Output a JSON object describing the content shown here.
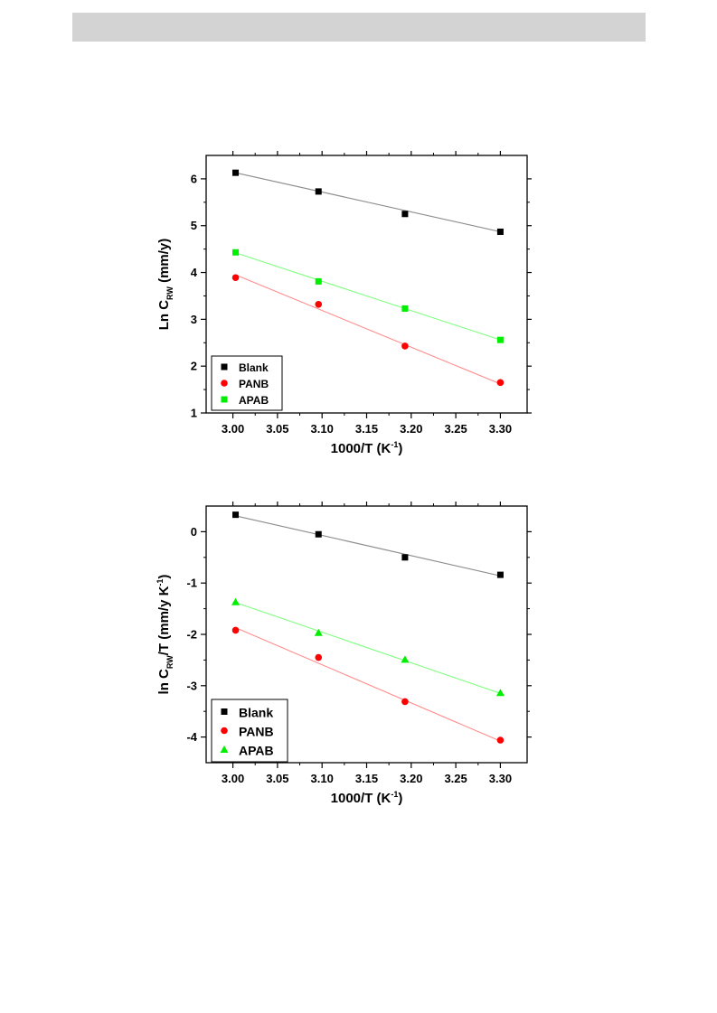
{
  "chart_data": [
    {
      "type": "scatter",
      "xlabel": {
        "main": "1000/T (K",
        "sup": "-1",
        "end": ")"
      },
      "ylabel": {
        "main": "Ln C",
        "sub": "RW",
        "end": " (mm/y)"
      },
      "xlim": [
        2.97,
        3.33
      ],
      "ylim": [
        1,
        6.5
      ],
      "xticks": [
        "3.00",
        "3.05",
        "3.10",
        "3.15",
        "3.20",
        "3.25",
        "3.30"
      ],
      "yticks": [
        "1",
        "2",
        "3",
        "4",
        "5",
        "6"
      ],
      "xtick_values": [
        3.0,
        3.05,
        3.1,
        3.15,
        3.2,
        3.25,
        3.3
      ],
      "ytick_values": [
        1,
        2,
        3,
        4,
        5,
        6
      ],
      "legend_position": "bottom-left",
      "series": [
        {
          "name": "Blank",
          "marker": "square",
          "color": "#000000",
          "line_color": "#8c8c8c",
          "x": [
            3.003,
            3.096,
            3.193,
            3.3
          ],
          "y": [
            6.13,
            5.73,
            5.25,
            4.87
          ],
          "fit": [
            [
              3.003,
              6.13
            ],
            [
              3.3,
              4.87
            ]
          ]
        },
        {
          "name": "PANB",
          "marker": "circle",
          "color": "#ff0000",
          "line_color": "#ff8c8c",
          "x": [
            3.003,
            3.096,
            3.193,
            3.3
          ],
          "y": [
            3.89,
            3.32,
            2.43,
            1.65
          ],
          "fit": [
            [
              3.003,
              3.95
            ],
            [
              3.3,
              1.62
            ]
          ]
        },
        {
          "name": "APAB",
          "marker": "square",
          "color": "#00ee00",
          "line_color": "#80ff80",
          "x": [
            3.003,
            3.096,
            3.193,
            3.3
          ],
          "y": [
            4.43,
            3.81,
            3.23,
            2.56
          ],
          "fit": [
            [
              3.003,
              4.42
            ],
            [
              3.3,
              2.56
            ]
          ]
        }
      ]
    },
    {
      "type": "scatter",
      "xlabel": {
        "main": "1000/T (K",
        "sup": "-1",
        "end": ")"
      },
      "ylabel": {
        "main": "ln C",
        "sub": "RW",
        "end": "/T (mm/y K",
        "sup": "-1",
        "end2": ")"
      },
      "xlim": [
        2.97,
        3.33
      ],
      "ylim": [
        -4.5,
        0.5
      ],
      "xticks": [
        "3.00",
        "3.05",
        "3.10",
        "3.15",
        "3.20",
        "3.25",
        "3.30"
      ],
      "yticks": [
        "-4",
        "-3",
        "-2",
        "-1",
        "0"
      ],
      "xtick_values": [
        3.0,
        3.05,
        3.1,
        3.15,
        3.2,
        3.25,
        3.3
      ],
      "ytick_values": [
        -4,
        -3,
        -2,
        -1,
        0
      ],
      "legend_position": "bottom-left",
      "series": [
        {
          "name": "Blank",
          "marker": "square",
          "color": "#000000",
          "line_color": "#8c8c8c",
          "x": [
            3.003,
            3.096,
            3.193,
            3.3
          ],
          "y": [
            0.33,
            -0.05,
            -0.5,
            -0.84
          ],
          "fit": [
            [
              3.003,
              0.31
            ],
            [
              3.3,
              -0.86
            ]
          ]
        },
        {
          "name": "PANB",
          "marker": "circle",
          "color": "#ff0000",
          "line_color": "#ff8c8c",
          "x": [
            3.003,
            3.096,
            3.193,
            3.3
          ],
          "y": [
            -1.92,
            -2.45,
            -3.31,
            -4.06
          ],
          "fit": [
            [
              3.003,
              -1.87
            ],
            [
              3.3,
              -4.08
            ]
          ]
        },
        {
          "name": "APAB",
          "marker": "triangle",
          "color": "#00ee00",
          "line_color": "#80ff80",
          "x": [
            3.003,
            3.096,
            3.193,
            3.3
          ],
          "y": [
            -1.37,
            -1.97,
            -2.49,
            -3.14
          ],
          "fit": [
            [
              3.003,
              -1.38
            ],
            [
              3.3,
              -3.15
            ]
          ]
        }
      ]
    }
  ]
}
